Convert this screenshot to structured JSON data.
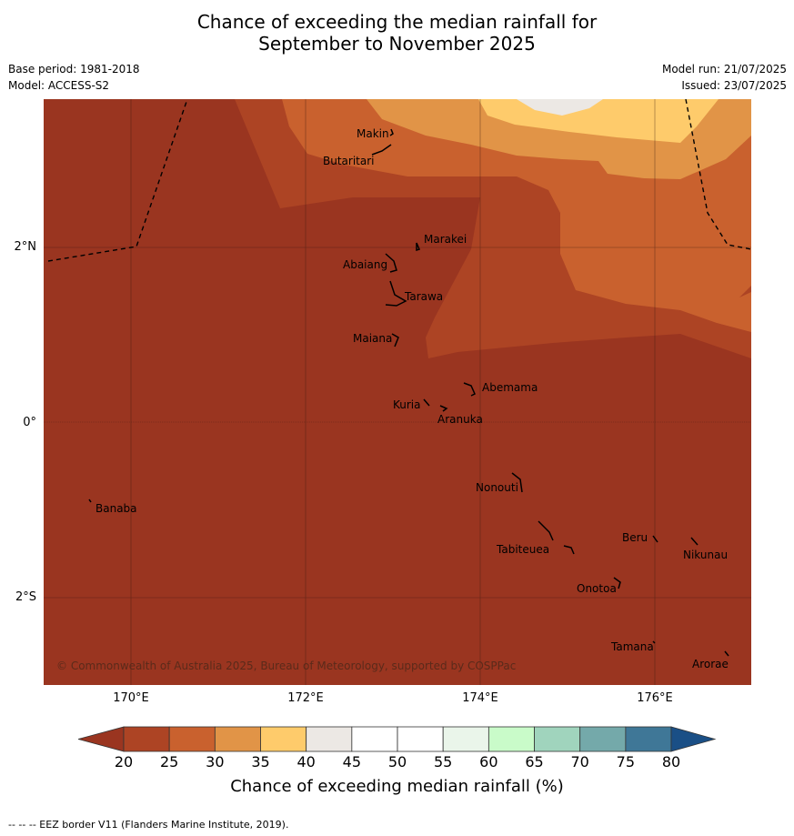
{
  "title_line1": "Chance of exceeding the median rainfall for",
  "title_line2": "September to November 2025",
  "base_period": "Base period: 1981-2018",
  "model": "Model: ACCESS-S2",
  "model_run": "Model run: 21/07/2025",
  "issued": "Issued: 23/07/2025",
  "lat_labels": [
    "2°N",
    "0°",
    "2°S"
  ],
  "lon_labels": [
    "170°E",
    "172°E",
    "174°E",
    "176°E"
  ],
  "islands": [
    "Makin",
    "Butaritari",
    "Marakei",
    "Abaiang",
    "Tarawa",
    "Maiana",
    "Abemama",
    "Kuria",
    "Aranuka",
    "Nonouti",
    "Banaba",
    "Beru",
    "Nikunau",
    "Tabiteuea",
    "Onotoa",
    "Tamana",
    "Arorae"
  ],
  "copyright": "© Commonwealth of Australia 2025, Bureau of Meteorology, supported by COSPPac",
  "colorbar": {
    "ticks": [
      "20",
      "25",
      "30",
      "35",
      "40",
      "45",
      "50",
      "55",
      "60",
      "65",
      "70",
      "75",
      "80"
    ],
    "colors": [
      "#ad4424",
      "#c9612e",
      "#e19447",
      "#fecb6b",
      "#ece8e4",
      "#ffffff",
      "#ffffff",
      "#eaf5ea",
      "#c9fbc9",
      "#a0d4bd",
      "#74a9aa",
      "#3f7797"
    ],
    "under_color": "#9a3520",
    "over_color": "#1a4f86",
    "label": "Chance of exceeding median rainfall (%)"
  },
  "footnote": "--  --  -- EEZ border V11 (Flanders Marine Institute, 2019)."
}
